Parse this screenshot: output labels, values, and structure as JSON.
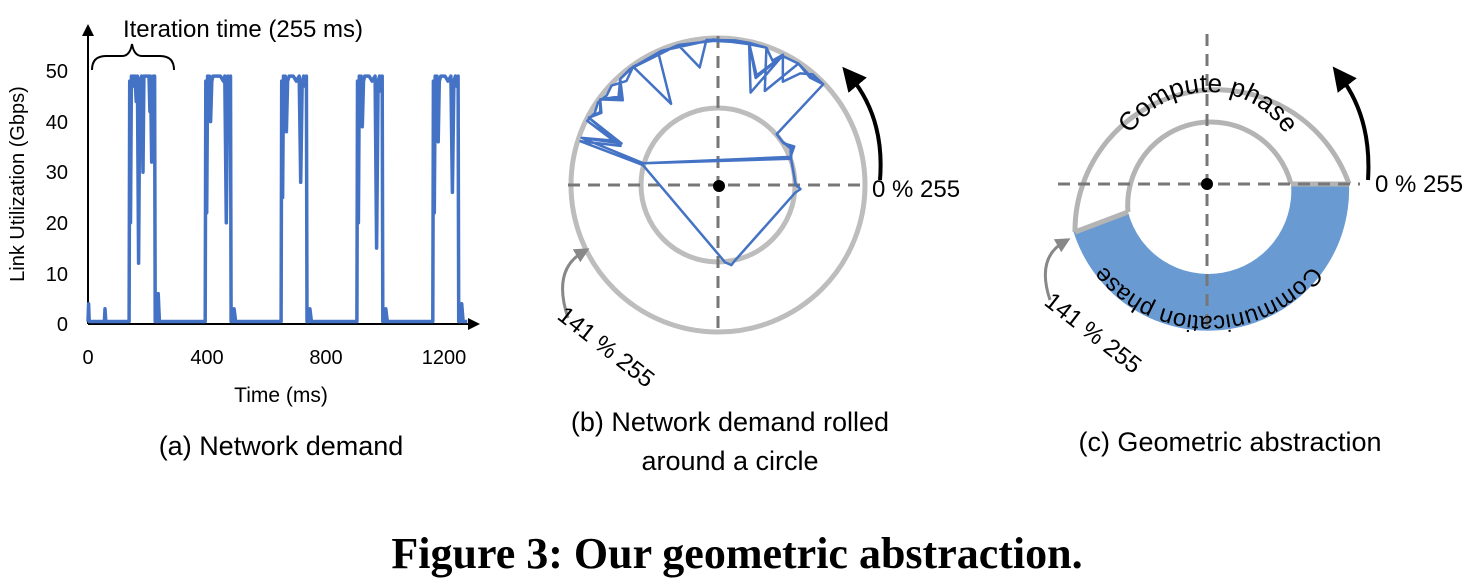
{
  "figure_caption": "Figure 3: Our geometric abstraction.",
  "panel_a": {
    "caption": "(a) Network demand",
    "annotation": "Iteration time (255 ms)",
    "chart_data": {
      "type": "line",
      "xlabel": "Time (ms)",
      "ylabel": "Link Utilization (Gbps)",
      "xlim": [
        0,
        1300
      ],
      "ylim": [
        0,
        52
      ],
      "xticks": [
        "0",
        "400",
        "800",
        "1200"
      ],
      "yticks": [
        "0",
        "10",
        "20",
        "30",
        "40",
        "50"
      ],
      "series_color": "#4472C4",
      "iteration_ms": 255,
      "comm_start_ms": 141,
      "points": [
        [
          0,
          0.5
        ],
        [
          2,
          4
        ],
        [
          4,
          0.5
        ],
        [
          55,
          0.5
        ],
        [
          57,
          3
        ],
        [
          60,
          0.5
        ],
        [
          138,
          0.5
        ],
        [
          140,
          48
        ],
        [
          143,
          20
        ],
        [
          146,
          49
        ],
        [
          149,
          47
        ],
        [
          152,
          49
        ],
        [
          155,
          47
        ],
        [
          158,
          49
        ],
        [
          162,
          44
        ],
        [
          166,
          49
        ],
        [
          170,
          12
        ],
        [
          174,
          48
        ],
        [
          180,
          49
        ],
        [
          185,
          30
        ],
        [
          188,
          49
        ],
        [
          196,
          49
        ],
        [
          200,
          49
        ],
        [
          205,
          49
        ],
        [
          208,
          42
        ],
        [
          210,
          49
        ],
        [
          214,
          32
        ],
        [
          217,
          44
        ],
        [
          220,
          49
        ],
        [
          224,
          49
        ],
        [
          226,
          0.5
        ],
        [
          232,
          0.5
        ],
        [
          236,
          6
        ],
        [
          240,
          0.5
        ],
        [
          394,
          0.5
        ],
        [
          396,
          48
        ],
        [
          399,
          22
        ],
        [
          402,
          49
        ],
        [
          405,
          43
        ],
        [
          408,
          49
        ],
        [
          412,
          40
        ],
        [
          416,
          48
        ],
        [
          420,
          49
        ],
        [
          430,
          49
        ],
        [
          445,
          49
        ],
        [
          455,
          48
        ],
        [
          460,
          49
        ],
        [
          465,
          20
        ],
        [
          470,
          49
        ],
        [
          475,
          46
        ],
        [
          479,
          49
        ],
        [
          481,
          0.5
        ],
        [
          486,
          0.5
        ],
        [
          491,
          3
        ],
        [
          496,
          0.5
        ],
        [
          649,
          0.5
        ],
        [
          651,
          48
        ],
        [
          654,
          25
        ],
        [
          657,
          49
        ],
        [
          660,
          43
        ],
        [
          663,
          49
        ],
        [
          667,
          38
        ],
        [
          671,
          48
        ],
        [
          676,
          49
        ],
        [
          690,
          49
        ],
        [
          700,
          48
        ],
        [
          710,
          49
        ],
        [
          715,
          28
        ],
        [
          720,
          48
        ],
        [
          725,
          49
        ],
        [
          730,
          47
        ],
        [
          734,
          49
        ],
        [
          736,
          0.5
        ],
        [
          741,
          0.5
        ],
        [
          746,
          3
        ],
        [
          751,
          0.5
        ],
        [
          904,
          0.5
        ],
        [
          906,
          48
        ],
        [
          909,
          20
        ],
        [
          912,
          49
        ],
        [
          915,
          44
        ],
        [
          918,
          49
        ],
        [
          922,
          39
        ],
        [
          926,
          48
        ],
        [
          930,
          49
        ],
        [
          945,
          49
        ],
        [
          955,
          48
        ],
        [
          965,
          49
        ],
        [
          970,
          15
        ],
        [
          975,
          48
        ],
        [
          980,
          49
        ],
        [
          985,
          46
        ],
        [
          989,
          49
        ],
        [
          991,
          0.5
        ],
        [
          996,
          0.5
        ],
        [
          1001,
          3
        ],
        [
          1006,
          0.5
        ],
        [
          1159,
          0.5
        ],
        [
          1161,
          48
        ],
        [
          1164,
          22
        ],
        [
          1167,
          49
        ],
        [
          1170,
          43
        ],
        [
          1173,
          49
        ],
        [
          1177,
          36
        ],
        [
          1181,
          48
        ],
        [
          1186,
          49
        ],
        [
          1200,
          49
        ],
        [
          1210,
          48
        ],
        [
          1220,
          49
        ],
        [
          1225,
          26
        ],
        [
          1230,
          48
        ],
        [
          1235,
          49
        ],
        [
          1240,
          47
        ],
        [
          1244,
          49
        ],
        [
          1246,
          0.5
        ],
        [
          1251,
          0.5
        ],
        [
          1256,
          4
        ],
        [
          1261,
          0.5
        ],
        [
          1275,
          0.5
        ]
      ]
    }
  },
  "panel_b": {
    "caption_line1": "(b) Network demand rolled",
    "caption_line2": "around a circle",
    "label_zero": "0 % 255",
    "label_141": "141 % 255"
  },
  "panel_c": {
    "caption": "(c) Geometric abstraction",
    "label_zero": "0 % 255",
    "label_141": "141 % 255",
    "compute_label": "Compute phase",
    "comm_label": "Communication phase",
    "comm_color": "#6A9AD2",
    "ring_color": "#B4B4B4"
  }
}
